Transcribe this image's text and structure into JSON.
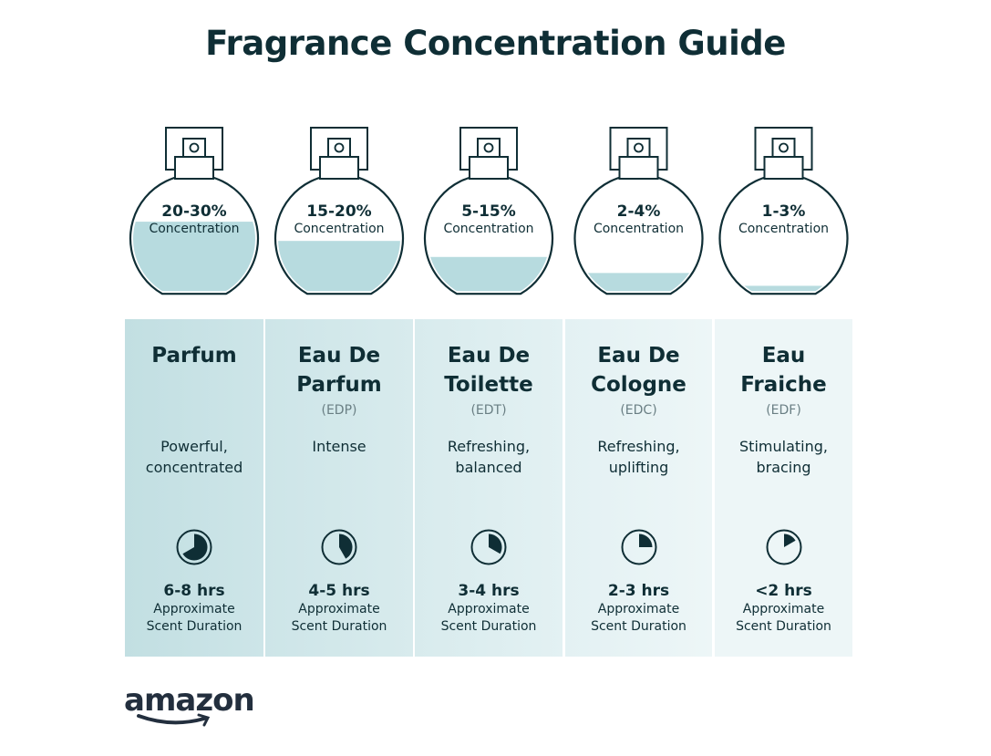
{
  "title": "Fragrance Concentration Guide",
  "concentration_label": "Concentration",
  "duration_label_1": "Approximate",
  "duration_label_2": "Scent Duration",
  "colors": {
    "text": "#0f2e35",
    "liquid": "#b7dbdf",
    "panel_start": "#c0dfe2",
    "panel_end": "#f1f8f9"
  },
  "types": [
    {
      "concentration": "20-30%",
      "name_1": "Parfum",
      "name_2": "",
      "abbr": "",
      "desc_1": "Powerful,",
      "desc_2": "concentrated",
      "hours": "6-8 hrs",
      "fill_level": 0.45,
      "clock_fraction": 0.667,
      "panel_color": "#c2dfe2"
    },
    {
      "concentration": "15-20%",
      "name_1": "Eau De",
      "name_2": "Parfum",
      "abbr": "(EDP)",
      "desc_1": "Intense",
      "desc_2": "",
      "hours": "4-5 hrs",
      "fill_level": 0.33,
      "clock_fraction": 0.417,
      "panel_color": "#cde5e8"
    },
    {
      "concentration": "5-15%",
      "name_1": "Eau De",
      "name_2": "Toilette",
      "abbr": "(EDT)",
      "desc_1": "Refreshing,",
      "desc_2": "balanced",
      "hours": "3-4 hrs",
      "fill_level": 0.23,
      "clock_fraction": 0.333,
      "panel_color": "#d8ebed"
    },
    {
      "concentration": "2-4%",
      "name_1": "Eau De",
      "name_2": "Cologne",
      "abbr": "(EDC)",
      "desc_1": "Refreshing,",
      "desc_2": "uplifting",
      "hours": "2-3 hrs",
      "fill_level": 0.13,
      "clock_fraction": 0.25,
      "panel_color": "#e3f1f3"
    },
    {
      "concentration": "1-3%",
      "name_1": "Eau",
      "name_2": "Fraiche",
      "abbr": "(EDF)",
      "desc_1": "Stimulating,",
      "desc_2": "bracing",
      "hours": "<2 hrs",
      "fill_level": 0.05,
      "clock_fraction": 0.167,
      "panel_color": "#edf6f7"
    }
  ],
  "logo": "amazon"
}
